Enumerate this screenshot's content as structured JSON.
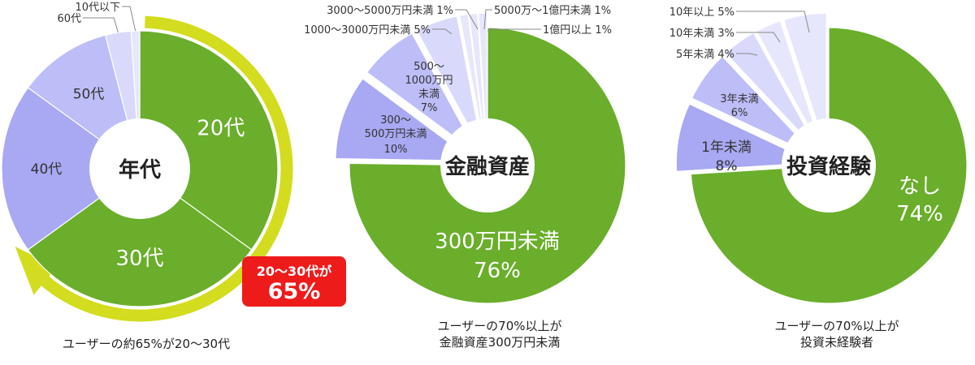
{
  "colors": {
    "green": "#6aae2b",
    "periwinkle": "#a8a8f3",
    "lavender": "#bdbdf8",
    "pale_lavender": "#d9d9fb",
    "palest_lavender": "#e6e6fc",
    "arrow_yellow": "#d3dc1e",
    "badge_red": "#ee1b1b",
    "white": "#ffffff"
  },
  "chart_data": [
    {
      "type": "pie",
      "center_label": "年代",
      "slices": [
        {
          "label": "20代",
          "value": 35,
          "color": "#6aae2b"
        },
        {
          "label": "30代",
          "value": 30,
          "color": "#6aae2b"
        },
        {
          "label": "40代",
          "value": 20,
          "color": "#a8a8f3"
        },
        {
          "label": "50代",
          "value": 11,
          "color": "#bdbdf8"
        },
        {
          "label": "60代",
          "value": 3,
          "color": "#d9d9fb"
        },
        {
          "label": "10代以下",
          "value": 1,
          "color": "#e6e6fc"
        }
      ],
      "badge": {
        "line1": "20〜30代が",
        "line2": "65%"
      },
      "caption": [
        "ユーザーの約65%が20〜30代"
      ]
    },
    {
      "type": "pie",
      "center_label": "金融資産",
      "slices": [
        {
          "label": "300万円未満",
          "pct": "76%",
          "value": 76,
          "color": "#6aae2b"
        },
        {
          "label": "300〜500万円未満",
          "pct": "10%",
          "value": 10,
          "color": "#a8a8f3"
        },
        {
          "label": "500〜1000万円未満",
          "pct": "7%",
          "value": 7,
          "color": "#bdbdf8"
        },
        {
          "label": "1000〜3000万円未満",
          "pct": "5%",
          "value": 5,
          "color": "#d9d9fb"
        },
        {
          "label": "3000〜5000万円未満",
          "pct": "1%",
          "value": 1,
          "color": "#e6e6fc"
        },
        {
          "label": "5000万〜1億円未満",
          "pct": "1%",
          "value": 1,
          "color": "#e6e6fc"
        },
        {
          "label": "1億円以上",
          "pct": "1%",
          "value": 1,
          "color": "#e6e6fc"
        }
      ],
      "caption": [
        "ユーザーの70%以上が",
        "金融資産300万円未満"
      ]
    },
    {
      "type": "pie",
      "center_label": "投資経験",
      "slices": [
        {
          "label": "なし",
          "pct": "74%",
          "value": 74,
          "color": "#6aae2b"
        },
        {
          "label": "1年未満",
          "pct": "8%",
          "value": 8,
          "color": "#a8a8f3"
        },
        {
          "label": "3年未満",
          "pct": "6%",
          "value": 6,
          "color": "#bdbdf8"
        },
        {
          "label": "5年未満",
          "pct": "4%",
          "value": 4,
          "color": "#d9d9fb"
        },
        {
          "label": "10年未満",
          "pct": "3%",
          "value": 3,
          "color": "#e6e6fc"
        },
        {
          "label": "10年以上",
          "pct": "5%",
          "value": 5,
          "color": "#e6e6fc"
        }
      ],
      "caption": [
        "ユーザーの70%以上が",
        "投資未経験者"
      ]
    }
  ]
}
